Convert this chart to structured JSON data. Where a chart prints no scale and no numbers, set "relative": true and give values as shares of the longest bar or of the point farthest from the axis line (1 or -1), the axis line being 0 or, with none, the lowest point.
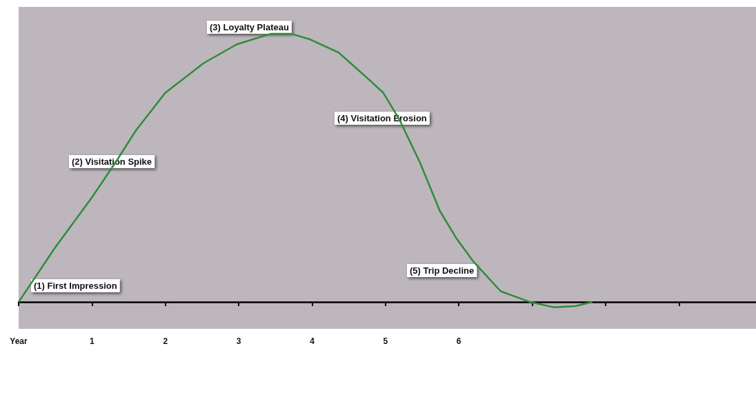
{
  "chart_data": {
    "type": "line",
    "relative": true,
    "marker": "none",
    "line_style": "solid",
    "x": [
      0,
      0.49,
      1,
      1.32,
      1.6,
      2,
      2.52,
      2.97,
      3.44,
      3.71,
      3.96,
      4.36,
      4.73,
      4.97,
      5.19,
      5.47,
      5.74,
      5.96,
      6.2,
      6.57,
      6.97,
      7.3,
      7.59,
      7.82
    ],
    "series": [
      {
        "color": "#2e8b3a",
        "values": [
          0,
          0.2,
          0.39,
          0.52,
          0.64,
          0.78,
          0.89,
          0.96,
          1.0,
          1.0,
          0.98,
          0.93,
          0.84,
          0.78,
          0.68,
          0.52,
          0.34,
          0.24,
          0.15,
          0.04,
          0,
          -0.02,
          -0.015,
          0
        ]
      }
    ],
    "xlim": [
      0,
      10.05
    ],
    "xticks": [
      {
        "value": 0,
        "label": "Year"
      },
      1,
      2,
      3,
      4,
      5,
      6,
      {
        "value": 7,
        "label": null
      },
      {
        "value": 8,
        "label": null
      },
      {
        "value": 9,
        "label": null
      }
    ],
    "annotations": [
      "(1) First Impression",
      "(2) Visitation Spike",
      "(3) Loyalty Plateau",
      "(4) Visitation Erosion",
      "(5) Trip Decline"
    ],
    "grid": false
  }
}
